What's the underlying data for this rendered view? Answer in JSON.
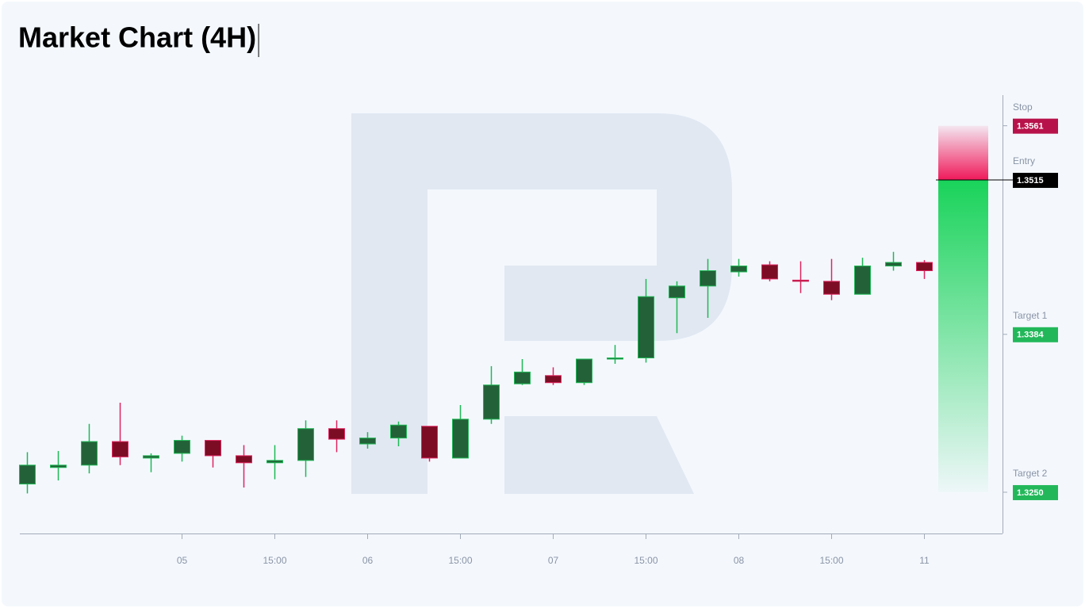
{
  "chart_data": {
    "type": "candlestick",
    "title": "Market Chart (4H)",
    "categories": [
      null,
      null,
      null,
      null,
      null,
      "05",
      null,
      null,
      "15:00",
      null,
      null,
      "06",
      null,
      null,
      "15:00",
      null,
      null,
      "07",
      null,
      null,
      "15:00",
      null,
      null,
      "08",
      null,
      null,
      "15:00",
      null,
      null,
      "11"
    ],
    "open": [
      1.3257,
      1.3271,
      1.3273,
      1.3293,
      1.3279,
      1.3283,
      1.3294,
      1.3281,
      1.3275,
      1.3277,
      1.3304,
      1.3291,
      1.3296,
      1.3306,
      1.3279,
      1.3312,
      1.3342,
      1.3349,
      1.3343,
      1.3363,
      1.3364,
      1.3415,
      1.3425,
      1.3437,
      1.3443,
      1.343,
      1.3429,
      1.3418,
      1.3442,
      1.3445
    ],
    "high": [
      1.3284,
      1.3285,
      1.3308,
      1.3326,
      1.3283,
      1.3298,
      1.3294,
      1.329,
      1.329,
      1.3311,
      1.3311,
      1.3301,
      1.331,
      1.3306,
      1.3324,
      1.3357,
      1.3363,
      1.3356,
      1.3363,
      1.3375,
      1.3431,
      1.3429,
      1.3448,
      1.3448,
      1.3446,
      1.3446,
      1.3448,
      1.3449,
      1.3454,
      1.3447
    ],
    "low": [
      1.3249,
      1.326,
      1.3266,
      1.3273,
      1.3267,
      1.3276,
      1.3271,
      1.3254,
      1.3261,
      1.3263,
      1.3284,
      1.3287,
      1.3289,
      1.3276,
      1.3279,
      1.3308,
      1.3341,
      1.3341,
      1.3341,
      1.3359,
      1.336,
      1.3385,
      1.3398,
      1.3433,
      1.3429,
      1.3419,
      1.3413,
      1.3418,
      1.3438,
      1.3431
    ],
    "close": [
      1.3273,
      1.3273,
      1.3293,
      1.328,
      1.3281,
      1.3294,
      1.3281,
      1.3275,
      1.3277,
      1.3304,
      1.3295,
      1.3296,
      1.3307,
      1.3279,
      1.3312,
      1.3341,
      1.3352,
      1.3343,
      1.3363,
      1.3364,
      1.3416,
      1.3425,
      1.3438,
      1.3442,
      1.3431,
      1.3429,
      1.3418,
      1.3442,
      1.3445,
      1.3438
    ],
    "up_color": "#1db954",
    "down_color": "#e0245e",
    "ylim": [
      1.3215,
      1.3587
    ],
    "levels": [
      {
        "name": "Stop",
        "value": 1.3561,
        "color": "#b8124a"
      },
      {
        "name": "Entry",
        "value": 1.3515,
        "color": "#000000"
      },
      {
        "name": "Target 1",
        "value": 1.3384,
        "color": "#22b85a"
      },
      {
        "name": "Target 2",
        "value": 1.325,
        "label": "1.3250",
        "color": "#22b85a"
      }
    ]
  }
}
